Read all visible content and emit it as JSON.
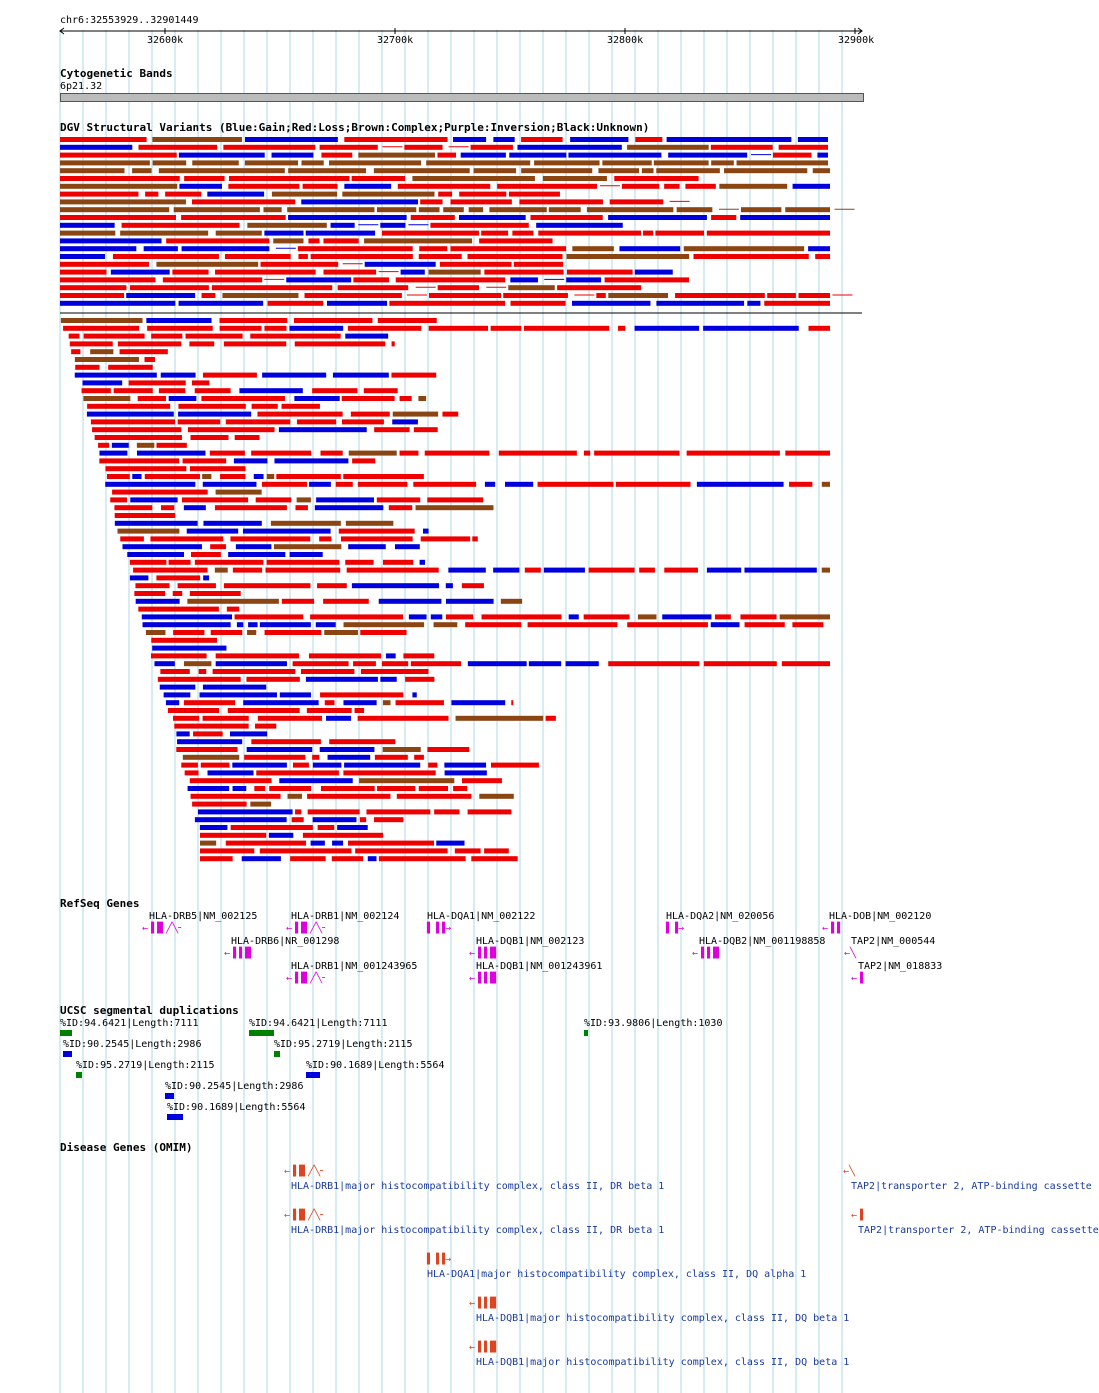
{
  "position": "chr6:32553929..32901449",
  "ruler": {
    "ticks": [
      {
        "label": "32600k",
        "value": 32600000
      },
      {
        "label": "32700k",
        "value": 32700000
      },
      {
        "label": "32800k",
        "value": 32800000
      },
      {
        "label": "32900k",
        "value": 32900000
      }
    ]
  },
  "tracks": {
    "cytoband": {
      "title": "Cytogenetic Bands",
      "band": "6p21.32"
    },
    "dgv": {
      "title": "DGV Structural Variants (Blue:Gain;Red:Loss;Brown:Complex;Purple:Inversion;Black:Unknown)"
    },
    "refseq": {
      "title": "RefSeq Genes",
      "genes": [
        {
          "label": "HLA-DRB5|NM_002125",
          "glyph": "←▐▐▌╱╲╴"
        },
        {
          "label": "HLA-DRB1|NM_002124",
          "glyph": "←▐▐▌╱╲╴"
        },
        {
          "label": "HLA-DQA1|NM_002122",
          "glyph": "▌▐▐→"
        },
        {
          "label": "HLA-DQA2|NM_020056",
          "glyph": "▌▐→"
        },
        {
          "label": "HLA-DOB|NM_002120",
          "glyph": "←▐▐"
        },
        {
          "label": "HLA-DRB6|NR_001298",
          "glyph": "←▐▐▐▌"
        },
        {
          "label": "HLA-DQB1|NM_002123",
          "glyph": "←▐▐▐▌"
        },
        {
          "label": "HLA-DQB2|NM_001198858",
          "glyph": "←▐▐▐▌"
        },
        {
          "label": "TAP2|NM_000544",
          "glyph": "←╲"
        },
        {
          "label": "HLA-DRB1|NM_001243965",
          "glyph": "←▐▐▌╱╲╴"
        },
        {
          "label": "HLA-DQB1|NM_001243961",
          "glyph": "←▐▐▐▌"
        },
        {
          "label": "TAP2|NM_018833",
          "glyph": "←▐"
        }
      ]
    },
    "segdup": {
      "title": "UCSC segmental duplications",
      "items": [
        {
          "label": "%ID:94.6421|Length:7111",
          "color": "#008000"
        },
        {
          "label": "%ID:94.6421|Length:7111",
          "color": "#008000"
        },
        {
          "label": "%ID:93.9806|Length:1030",
          "color": "#008000"
        },
        {
          "label": "%ID:90.2545|Length:2986",
          "color": "#0000dd"
        },
        {
          "label": "%ID:95.2719|Length:2115",
          "color": "#008000"
        },
        {
          "label": "%ID:95.2719|Length:2115",
          "color": "#008000"
        },
        {
          "label": "%ID:90.1689|Length:5564",
          "color": "#0000dd"
        },
        {
          "label": "%ID:90.2545|Length:2986",
          "color": "#0000dd"
        },
        {
          "label": "%ID:90.1689|Length:5564",
          "color": "#0000dd"
        }
      ]
    },
    "omim": {
      "title": "Disease Genes (OMIM)",
      "items": [
        {
          "label": "HLA-DRB1|major histocompatibility complex, class II, DR beta 1"
        },
        {
          "label": "TAP2|transporter 2, ATP-binding cassette"
        },
        {
          "label": "HLA-DRB1|major histocompatibility complex, class II, DR beta 1"
        },
        {
          "label": "TAP2|transporter 2, ATP-binding cassette"
        },
        {
          "label": "HLA-DQA1|major histocompatibility complex, class II, DQ alpha 1"
        },
        {
          "label": "HLA-DQB1|major histocompatibility complex, class II, DQ beta 1"
        },
        {
          "label": "HLA-DQB1|major histocompatibility complex, class II, DQ beta 1"
        }
      ]
    }
  },
  "colors": {
    "gain": "#0000dd",
    "loss": "#ee0000",
    "complex": "#8b4513",
    "unknown": "#000000",
    "grid": "#add8e6",
    "refseq": "#dd00dd",
    "omim": "#dd4422"
  }
}
